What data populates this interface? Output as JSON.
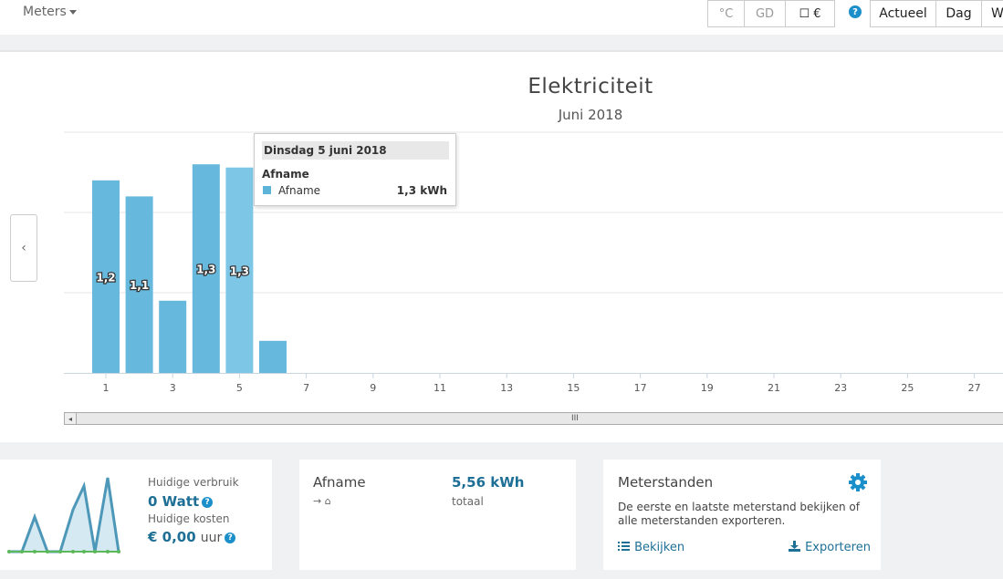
{
  "topbar": {
    "meters_label": "Meters",
    "buttons": [
      "°C",
      "GD",
      "☐ €"
    ],
    "help": "?",
    "periods": [
      "Actueel",
      "Dag",
      "W"
    ]
  },
  "chart_header": {
    "title": "Elektriciteit",
    "subtitle": "Juni 2018",
    "nav_prev": "‹"
  },
  "chart_data": {
    "type": "bar",
    "x": [
      1,
      2,
      3,
      4,
      5,
      6
    ],
    "values": [
      1.2,
      1.1,
      0.45,
      1.3,
      1.28,
      0.2
    ],
    "data_labels": [
      "1,2",
      "1,1",
      "",
      "1,3",
      "1,3",
      ""
    ],
    "xticks": [
      "1",
      "3",
      "5",
      "7",
      "9",
      "11",
      "13",
      "15",
      "17",
      "19",
      "21",
      "23",
      "25",
      "27"
    ],
    "xlim": [
      0.5,
      28.5
    ],
    "ylim": [
      0,
      1.5
    ],
    "grid": true,
    "highlighted_index": 4,
    "colors": {
      "bar": "#66b8dc",
      "highlight": "#7ec6e6",
      "grid": "#e6e6e6"
    }
  },
  "tooltip": {
    "header": "Dinsdag 5 juni 2018",
    "series_title": "Afname",
    "label": "Afname",
    "value": "1,3 kWh"
  },
  "scrollbar": {
    "left_arrow": "◂",
    "grip": "III"
  },
  "card_usage": {
    "current_label": "Huidige verbruik",
    "current_value": "0 Watt",
    "cost_label": "Huidige kosten",
    "cost_value": "€ 0,00",
    "cost_unit": "uur",
    "help": "?"
  },
  "card_afname": {
    "title": "Afname",
    "value": "5,56 kWh",
    "value_caption": "totaal",
    "direction_icon": "arrow-to-home-icon",
    "direction_text": "→ ⌂"
  },
  "card_meterstanden": {
    "title": "Meterstanden",
    "description": "De eerste en laatste meterstand bekijken of alle meterstanden exporteren.",
    "view_label": "Bekijken",
    "export_label": "Exporteren"
  }
}
